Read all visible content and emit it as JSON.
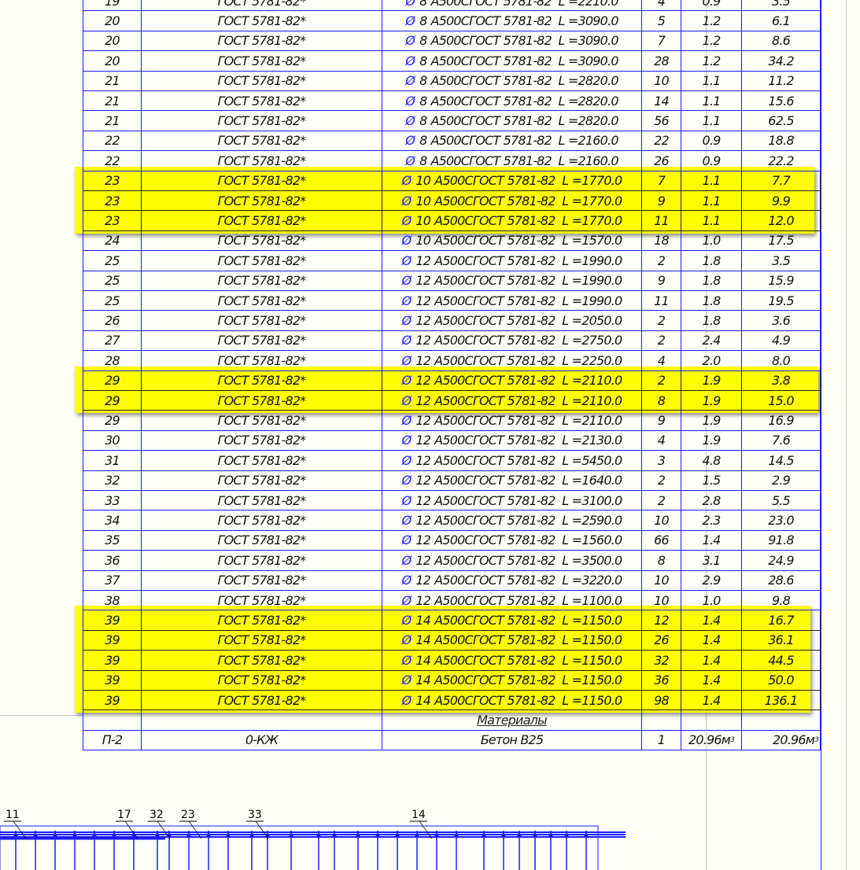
{
  "colors": {
    "line": "#1a1aff",
    "highlight": "#ffff00",
    "background": "#fffffa"
  },
  "rows": [
    {
      "pos": "19",
      "doc": "ГОСТ 5781-82*",
      "dia": "8",
      "spec": "А500СГОСТ 5781-82  L =2210.0",
      "qty": "4",
      "mass": "0.9",
      "total": "3.5",
      "hl": false
    },
    {
      "pos": "20",
      "doc": "ГОСТ 5781-82*",
      "dia": "8",
      "spec": "А500СГОСТ 5781-82  L =3090.0",
      "qty": "5",
      "mass": "1.2",
      "total": "6.1",
      "hl": false
    },
    {
      "pos": "20",
      "doc": "ГОСТ 5781-82*",
      "dia": "8",
      "spec": "А500СГОСТ 5781-82  L =3090.0",
      "qty": "7",
      "mass": "1.2",
      "total": "8.6",
      "hl": false
    },
    {
      "pos": "20",
      "doc": "ГОСТ 5781-82*",
      "dia": "8",
      "spec": "А500СГОСТ 5781-82  L =3090.0",
      "qty": "28",
      "mass": "1.2",
      "total": "34.2",
      "hl": false
    },
    {
      "pos": "21",
      "doc": "ГОСТ 5781-82*",
      "dia": "8",
      "spec": "А500СГОСТ 5781-82  L =2820.0",
      "qty": "10",
      "mass": "1.1",
      "total": "11.2",
      "hl": false
    },
    {
      "pos": "21",
      "doc": "ГОСТ 5781-82*",
      "dia": "8",
      "spec": "А500СГОСТ 5781-82  L =2820.0",
      "qty": "14",
      "mass": "1.1",
      "total": "15.6",
      "hl": false
    },
    {
      "pos": "21",
      "doc": "ГОСТ 5781-82*",
      "dia": "8",
      "spec": "А500СГОСТ 5781-82  L =2820.0",
      "qty": "56",
      "mass": "1.1",
      "total": "62.5",
      "hl": false
    },
    {
      "pos": "22",
      "doc": "ГОСТ 5781-82*",
      "dia": "8",
      "spec": "А500СГОСТ 5781-82  L =2160.0",
      "qty": "22",
      "mass": "0.9",
      "total": "18.8",
      "hl": false
    },
    {
      "pos": "22",
      "doc": "ГОСТ 5781-82*",
      "dia": "8",
      "spec": "А500СГОСТ 5781-82  L =2160.0",
      "qty": "26",
      "mass": "0.9",
      "total": "22.2",
      "hl": false
    },
    {
      "pos": "23",
      "doc": "ГОСТ 5781-82*",
      "dia": "10",
      "spec": "А500СГОСТ 5781-82  L =1770.0",
      "qty": "7",
      "mass": "1.1",
      "total": "7.7",
      "hl": true
    },
    {
      "pos": "23",
      "doc": "ГОСТ 5781-82*",
      "dia": "10",
      "spec": "А500СГОСТ 5781-82  L =1770.0",
      "qty": "9",
      "mass": "1.1",
      "total": "9.9",
      "hl": true
    },
    {
      "pos": "23",
      "doc": "ГОСТ 5781-82*",
      "dia": "10",
      "spec": "А500СГОСТ 5781-82  L =1770.0",
      "qty": "11",
      "mass": "1.1",
      "total": "12.0",
      "hl": true
    },
    {
      "pos": "24",
      "doc": "ГОСТ 5781-82*",
      "dia": "10",
      "spec": "А500СГОСТ 5781-82  L =1570.0",
      "qty": "18",
      "mass": "1.0",
      "total": "17.5",
      "hl": false
    },
    {
      "pos": "25",
      "doc": "ГОСТ 5781-82*",
      "dia": "12",
      "spec": "А500СГОСТ 5781-82  L =1990.0",
      "qty": "2",
      "mass": "1.8",
      "total": "3.5",
      "hl": false
    },
    {
      "pos": "25",
      "doc": "ГОСТ 5781-82*",
      "dia": "12",
      "spec": "А500СГОСТ 5781-82  L =1990.0",
      "qty": "9",
      "mass": "1.8",
      "total": "15.9",
      "hl": false
    },
    {
      "pos": "25",
      "doc": "ГОСТ 5781-82*",
      "dia": "12",
      "spec": "А500СГОСТ 5781-82  L =1990.0",
      "qty": "11",
      "mass": "1.8",
      "total": "19.5",
      "hl": false
    },
    {
      "pos": "26",
      "doc": "ГОСТ 5781-82*",
      "dia": "12",
      "spec": "А500СГОСТ 5781-82  L =2050.0",
      "qty": "2",
      "mass": "1.8",
      "total": "3.6",
      "hl": false
    },
    {
      "pos": "27",
      "doc": "ГОСТ 5781-82*",
      "dia": "12",
      "spec": "А500СГОСТ 5781-82  L =2750.0",
      "qty": "2",
      "mass": "2.4",
      "total": "4.9",
      "hl": false
    },
    {
      "pos": "28",
      "doc": "ГОСТ 5781-82*",
      "dia": "12",
      "spec": "А500СГОСТ 5781-82  L =2250.0",
      "qty": "4",
      "mass": "2.0",
      "total": "8.0",
      "hl": false
    },
    {
      "pos": "29",
      "doc": "ГОСТ 5781-82*",
      "dia": "12",
      "spec": "А500СГОСТ 5781-82  L =2110.0",
      "qty": "2",
      "mass": "1.9",
      "total": "3.8",
      "hl": true
    },
    {
      "pos": "29",
      "doc": "ГОСТ 5781-82*",
      "dia": "12",
      "spec": "А500СГОСТ 5781-82  L =2110.0",
      "qty": "8",
      "mass": "1.9",
      "total": "15.0",
      "hl": true
    },
    {
      "pos": "29",
      "doc": "ГОСТ 5781-82*",
      "dia": "12",
      "spec": "А500СГОСТ 5781-82  L =2110.0",
      "qty": "9",
      "mass": "1.9",
      "total": "16.9",
      "hl": false
    },
    {
      "pos": "30",
      "doc": "ГОСТ 5781-82*",
      "dia": "12",
      "spec": "А500СГОСТ 5781-82  L =2130.0",
      "qty": "4",
      "mass": "1.9",
      "total": "7.6",
      "hl": false
    },
    {
      "pos": "31",
      "doc": "ГОСТ 5781-82*",
      "dia": "12",
      "spec": "А500СГОСТ 5781-82  L =5450.0",
      "qty": "3",
      "mass": "4.8",
      "total": "14.5",
      "hl": false
    },
    {
      "pos": "32",
      "doc": "ГОСТ 5781-82*",
      "dia": "12",
      "spec": "А500СГОСТ 5781-82  L =1640.0",
      "qty": "2",
      "mass": "1.5",
      "total": "2.9",
      "hl": false
    },
    {
      "pos": "33",
      "doc": "ГОСТ 5781-82*",
      "dia": "12",
      "spec": "А500СГОСТ 5781-82  L =3100.0",
      "qty": "2",
      "mass": "2.8",
      "total": "5.5",
      "hl": false
    },
    {
      "pos": "34",
      "doc": "ГОСТ 5781-82*",
      "dia": "12",
      "spec": "А500СГОСТ 5781-82  L =2590.0",
      "qty": "10",
      "mass": "2.3",
      "total": "23.0",
      "hl": false
    },
    {
      "pos": "35",
      "doc": "ГОСТ 5781-82*",
      "dia": "12",
      "spec": "А500СГОСТ 5781-82  L =1560.0",
      "qty": "66",
      "mass": "1.4",
      "total": "91.8",
      "hl": false
    },
    {
      "pos": "36",
      "doc": "ГОСТ 5781-82*",
      "dia": "12",
      "spec": "А500СГОСТ 5781-82  L =3500.0",
      "qty": "8",
      "mass": "3.1",
      "total": "24.9",
      "hl": false
    },
    {
      "pos": "37",
      "doc": "ГОСТ 5781-82*",
      "dia": "12",
      "spec": "А500СГОСТ 5781-82  L =3220.0",
      "qty": "10",
      "mass": "2.9",
      "total": "28.6",
      "hl": false
    },
    {
      "pos": "38",
      "doc": "ГОСТ 5781-82*",
      "dia": "12",
      "spec": "А500СГОСТ 5781-82  L =1100.0",
      "qty": "10",
      "mass": "1.0",
      "total": "9.8",
      "hl": false
    },
    {
      "pos": "39",
      "doc": "ГОСТ 5781-82*",
      "dia": "14",
      "spec": "А500СГОСТ 5781-82  L =1150.0",
      "qty": "12",
      "mass": "1.4",
      "total": "16.7",
      "hl": true
    },
    {
      "pos": "39",
      "doc": "ГОСТ 5781-82*",
      "dia": "14",
      "spec": "А500СГОСТ 5781-82  L =1150.0",
      "qty": "26",
      "mass": "1.4",
      "total": "36.1",
      "hl": true
    },
    {
      "pos": "39",
      "doc": "ГОСТ 5781-82*",
      "dia": "14",
      "spec": "А500СГОСТ 5781-82  L =1150.0",
      "qty": "32",
      "mass": "1.4",
      "total": "44.5",
      "hl": true
    },
    {
      "pos": "39",
      "doc": "ГОСТ 5781-82*",
      "dia": "14",
      "spec": "А500СГОСТ 5781-82  L =1150.0",
      "qty": "36",
      "mass": "1.4",
      "total": "50.0",
      "hl": true
    },
    {
      "pos": "39",
      "doc": "ГОСТ 5781-82*",
      "dia": "14",
      "spec": "А500СГОСТ 5781-82  L =1150.0",
      "qty": "98",
      "mass": "1.4",
      "total": "136.1",
      "hl": true
    }
  ],
  "diameter_symbol": "Ø",
  "materials": {
    "section_label": "Материалы",
    "row": {
      "pos": "П-2",
      "doc": "0-КЖ",
      "name": "Бетон В25",
      "qty": "1",
      "mass": "20.96",
      "total": "20.96",
      "unit": "м",
      "unit_exp": "3"
    }
  },
  "drawing": {
    "callouts": [
      "11",
      "17",
      "32",
      "23",
      "33",
      "14"
    ]
  }
}
